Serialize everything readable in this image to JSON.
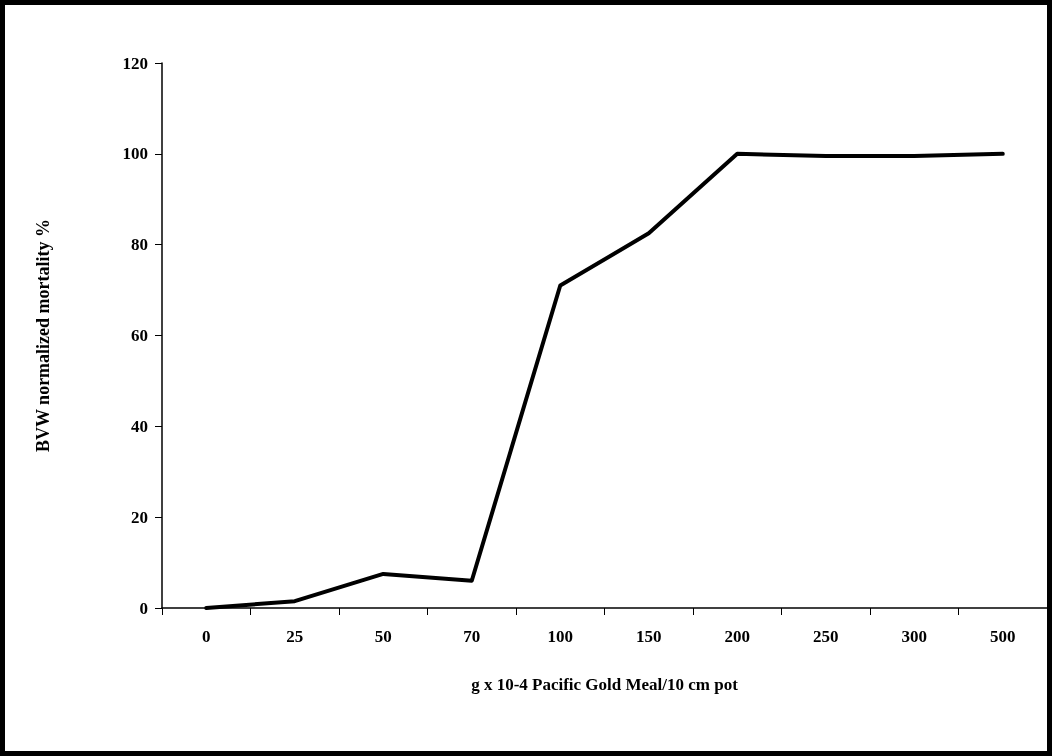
{
  "chart_data": {
    "type": "line",
    "xlabel": "g x 10-4 Pacific Gold Meal/10 cm pot",
    "ylabel": "BVW normalized mortality %",
    "categories": [
      "0",
      "25",
      "50",
      "70",
      "100",
      "150",
      "200",
      "250",
      "300",
      "500"
    ],
    "series": [
      {
        "color": "#000000",
        "values": [
          0,
          1.5,
          7.5,
          6,
          71,
          82.5,
          100,
          99.5,
          99.5,
          100
        ]
      }
    ],
    "ylim": [
      0,
      120
    ],
    "yticks": [
      0,
      20,
      40,
      60,
      80,
      100,
      120
    ],
    "grid": false,
    "marker": "none",
    "line_style": "solid"
  }
}
